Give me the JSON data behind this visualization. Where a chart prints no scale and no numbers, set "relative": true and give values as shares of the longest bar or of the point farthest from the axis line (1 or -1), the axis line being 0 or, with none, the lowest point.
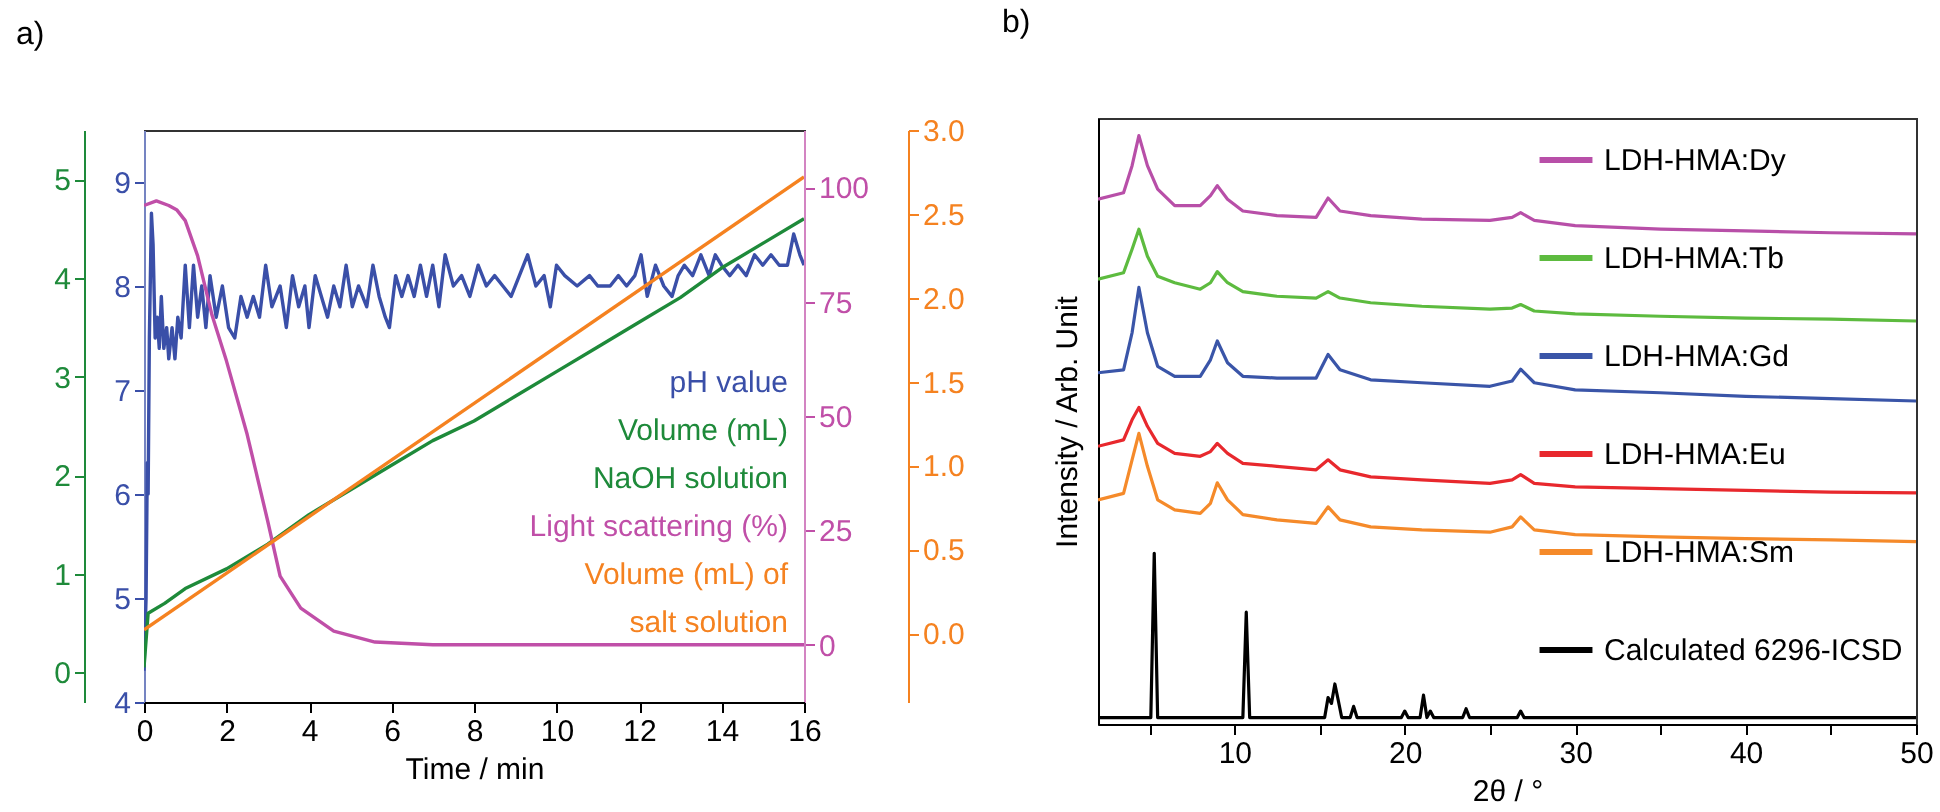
{
  "chart_data": [
    {
      "type": "line",
      "title": "a)",
      "xlabel": "Time / min",
      "xlim": [
        0,
        16
      ],
      "xticks": [
        0,
        2,
        4,
        6,
        8,
        10,
        12,
        14,
        16
      ],
      "ylim": [
        4,
        9.5
      ],
      "yticks": [
        4,
        5,
        6,
        7,
        8,
        9
      ],
      "y2lim": [
        -0.3,
        5.5
      ],
      "y2ticks": [
        0,
        1,
        2,
        3,
        4,
        5
      ],
      "y3lim": [
        -12.5,
        112.5
      ],
      "y3ticks": [
        0,
        25,
        50,
        75,
        100
      ],
      "legend": "bottom right",
      "grid": false,
      "series": [
        {
          "name": "pH value",
          "color": "#3a4fa8",
          "x": [
            0,
            0.05,
            0.08,
            0.1,
            0.13,
            0.18,
            0.22,
            0.27,
            0.32,
            0.37,
            0.42,
            0.48,
            0.55,
            0.6,
            0.68,
            0.75,
            0.82,
            0.9,
            1.0,
            1.1,
            1.2,
            1.3,
            1.4,
            1.5,
            1.6,
            1.75,
            1.9,
            2.05,
            2.2,
            2.35,
            2.5,
            2.65,
            2.8,
            2.95,
            3.1,
            3.3,
            3.45,
            3.6,
            3.75,
            3.9,
            4.0,
            4.15,
            4.3,
            4.45,
            4.6,
            4.75,
            4.9,
            5.05,
            5.2,
            5.4,
            5.55,
            5.7,
            5.85,
            5.95,
            6.1,
            6.25,
            6.4,
            6.55,
            6.7,
            6.85,
            7.0,
            7.15,
            7.3,
            7.5,
            7.7,
            7.9,
            8.1,
            8.3,
            8.5,
            8.7,
            8.9,
            9.1,
            9.3,
            9.5,
            9.7,
            9.85,
            10.0,
            10.2,
            10.5,
            10.8,
            11.0,
            11.3,
            11.5,
            11.7,
            11.9,
            12.05,
            12.2,
            12.4,
            12.6,
            12.8,
            12.95,
            13.1,
            13.3,
            13.5,
            13.7,
            13.85,
            14.0,
            14.2,
            14.4,
            14.6,
            14.8,
            15.0,
            15.2,
            15.4,
            15.6,
            15.75,
            15.9,
            16.0
          ],
          "values": [
            4.3,
            5.0,
            6.3,
            6.0,
            7.5,
            8.7,
            8.4,
            7.5,
            7.7,
            7.4,
            7.9,
            7.4,
            7.6,
            7.3,
            7.6,
            7.3,
            7.7,
            7.5,
            8.2,
            7.6,
            8.2,
            7.7,
            8.0,
            7.6,
            8.1,
            7.7,
            8.0,
            7.6,
            7.5,
            7.9,
            7.7,
            7.9,
            7.7,
            8.2,
            7.8,
            8.0,
            7.6,
            8.1,
            7.8,
            8.0,
            7.6,
            8.1,
            7.9,
            7.7,
            8.0,
            7.8,
            8.2,
            7.8,
            8.0,
            7.8,
            8.2,
            7.9,
            7.7,
            7.6,
            8.1,
            7.9,
            8.1,
            7.9,
            8.2,
            7.9,
            8.2,
            7.8,
            8.3,
            8.0,
            8.1,
            7.9,
            8.2,
            8.0,
            8.1,
            8.0,
            7.9,
            8.1,
            8.3,
            8.0,
            8.1,
            7.8,
            8.2,
            8.1,
            8.0,
            8.1,
            8.0,
            8.0,
            8.1,
            8.0,
            8.1,
            8.3,
            7.9,
            8.2,
            8.0,
            7.9,
            8.1,
            8.2,
            8.1,
            8.3,
            8.1,
            8.3,
            8.2,
            8.1,
            8.2,
            8.1,
            8.3,
            8.2,
            8.3,
            8.2,
            8.2,
            8.5,
            8.3,
            8.2
          ]
        },
        {
          "name": "Volume (mL) NaOH solution",
          "color": "#1e8a3a",
          "axis": "y2",
          "x": [
            0,
            0.1,
            0.5,
            1,
            2,
            3,
            4,
            5,
            6,
            7,
            8,
            9,
            10,
            11,
            12,
            13,
            14,
            15,
            16
          ],
          "values": [
            0.05,
            0.6,
            0.7,
            0.85,
            1.05,
            1.3,
            1.6,
            1.85,
            2.1,
            2.35,
            2.55,
            2.8,
            3.05,
            3.3,
            3.55,
            3.8,
            4.1,
            4.35,
            4.6
          ]
        },
        {
          "name": "Light scattering (%)",
          "color": "#c04fa8",
          "axis": "y3",
          "x": [
            0,
            0.3,
            0.6,
            0.8,
            1.0,
            1.3,
            1.65,
            2.0,
            2.5,
            3.0,
            3.3,
            3.8,
            4.6,
            5.6,
            7,
            16
          ],
          "values": [
            96,
            97,
            96,
            95,
            92.7,
            85,
            72,
            62,
            46,
            27,
            15,
            8,
            3,
            0.6,
            0,
            0
          ]
        }
      ]
    },
    {
      "type": "line",
      "xlim": [
        0,
        16
      ],
      "xticks": [
        0,
        2,
        4,
        6,
        8,
        10,
        12,
        14,
        16
      ],
      "tick_labels": "y",
      "ylim": [
        -0.41,
        3.0
      ],
      "yticks": [
        {
          "value": 0,
          "label": "0.0"
        },
        0.5,
        {
          "value": 1,
          "label": "1.0"
        },
        1.5,
        {
          "value": 2,
          "label": "2.0"
        },
        2.5,
        {
          "value": 3,
          "label": "3.0"
        }
      ],
      "grid": false,
      "series": [
        {
          "name": "Volume (mL) of salt solution",
          "color": "#f58220",
          "x": [
            0,
            16
          ],
          "values": [
            0.02,
            2.72
          ]
        }
      ]
    },
    {
      "type": "line",
      "title": "b)",
      "xlabel": "2θ / °",
      "ylabel": "Intensity / Arb. Unit",
      "relative": true,
      "xlim": [
        2,
        50
      ],
      "xticks": [
        {
          "value": 5,
          "label": null
        },
        10,
        {
          "value": 15,
          "label": null
        },
        20,
        {
          "value": 25,
          "label": null
        },
        30,
        {
          "value": 35,
          "label": null
        },
        40,
        {
          "value": 45,
          "label": null
        },
        50
      ],
      "legend": "top right",
      "grid": false,
      "series": [
        {
          "name": "LDH-HMA:Dy",
          "color": "#b84fa8",
          "x": [
            2,
            3.5,
            4.0,
            4.4,
            4.9,
            5.5,
            6.5,
            8.0,
            8.6,
            9.0,
            9.6,
            10.5,
            12.5,
            14.8,
            15.5,
            16.2,
            18,
            21,
            25,
            26.3,
            26.8,
            27.6,
            30,
            35,
            40,
            45,
            50
          ],
          "values": [
            0.892,
            0.903,
            0.949,
            1.0,
            0.949,
            0.909,
            0.881,
            0.881,
            0.898,
            0.915,
            0.892,
            0.872,
            0.864,
            0.861,
            0.894,
            0.872,
            0.864,
            0.858,
            0.856,
            0.861,
            0.869,
            0.856,
            0.847,
            0.841,
            0.838,
            0.835,
            0.833
          ]
        },
        {
          "name": "LDH-HMA:Tb",
          "color": "#5dbb3f",
          "x": [
            2,
            3.5,
            4.0,
            4.4,
            4.9,
            5.5,
            6.5,
            8.0,
            8.6,
            9.0,
            9.6,
            10.5,
            12.5,
            14.8,
            15.5,
            16.2,
            18,
            21,
            25,
            26.3,
            26.8,
            27.6,
            30,
            35,
            40,
            45,
            50
          ],
          "values": [
            0.756,
            0.767,
            0.807,
            0.841,
            0.795,
            0.761,
            0.75,
            0.739,
            0.75,
            0.769,
            0.75,
            0.735,
            0.727,
            0.724,
            0.735,
            0.724,
            0.716,
            0.71,
            0.705,
            0.707,
            0.713,
            0.702,
            0.697,
            0.693,
            0.69,
            0.688,
            0.685
          ]
        },
        {
          "name": "LDH-HMA:Gd",
          "color": "#3a55a8",
          "x": [
            2,
            3.5,
            4.0,
            4.4,
            4.9,
            5.5,
            6.5,
            8.0,
            8.6,
            9.0,
            9.6,
            10.5,
            12.5,
            14.8,
            15.5,
            16.2,
            18,
            21,
            25,
            26.3,
            26.8,
            27.6,
            30,
            35,
            40,
            45,
            50
          ],
          "values": [
            0.597,
            0.602,
            0.665,
            0.742,
            0.665,
            0.608,
            0.591,
            0.591,
            0.619,
            0.651,
            0.614,
            0.591,
            0.588,
            0.588,
            0.628,
            0.602,
            0.585,
            0.58,
            0.574,
            0.583,
            0.603,
            0.58,
            0.568,
            0.563,
            0.557,
            0.553,
            0.549
          ]
        },
        {
          "name": "LDH-HMA:Eu",
          "color": "#e8282d",
          "x": [
            2,
            3.5,
            4.0,
            4.4,
            4.9,
            5.5,
            6.5,
            8.0,
            8.6,
            9.0,
            9.6,
            10.5,
            12.5,
            14.8,
            15.5,
            16.2,
            18,
            21,
            25,
            26.3,
            26.8,
            27.6,
            30,
            35,
            40,
            45,
            50
          ],
          "values": [
            0.472,
            0.483,
            0.517,
            0.538,
            0.506,
            0.477,
            0.46,
            0.455,
            0.463,
            0.477,
            0.46,
            0.443,
            0.438,
            0.432,
            0.449,
            0.432,
            0.42,
            0.415,
            0.409,
            0.415,
            0.424,
            0.409,
            0.403,
            0.4,
            0.397,
            0.394,
            0.393
          ]
        },
        {
          "name": "LDH-HMA:Sm",
          "color": "#f58a2a",
          "x": [
            2,
            3.5,
            4.0,
            4.4,
            4.9,
            5.5,
            6.5,
            8.0,
            8.6,
            9.0,
            9.6,
            10.5,
            12.5,
            14.8,
            15.5,
            16.2,
            18,
            21,
            25,
            26.3,
            26.8,
            27.6,
            30,
            35,
            40,
            45,
            50
          ],
          "values": [
            0.381,
            0.392,
            0.449,
            0.494,
            0.438,
            0.381,
            0.364,
            0.358,
            0.375,
            0.41,
            0.381,
            0.356,
            0.347,
            0.341,
            0.369,
            0.347,
            0.335,
            0.33,
            0.326,
            0.335,
            0.352,
            0.33,
            0.322,
            0.318,
            0.315,
            0.313,
            0.31
          ]
        },
        {
          "name": "Calculated 6296-ICSD",
          "color": "#000000",
          "x": [
            2,
            5.1,
            5.3,
            5.5,
            10.5,
            10.7,
            10.9,
            15.3,
            15.5,
            15.7,
            15.9,
            16.1,
            16.3,
            16.8,
            17.0,
            17.2,
            19.8,
            20.0,
            20.2,
            20.9,
            21.1,
            21.3,
            21.5,
            21.7,
            23.4,
            23.6,
            23.8,
            26.6,
            26.8,
            27.0,
            50
          ],
          "values": [
            0.011,
            0.011,
            0.29,
            0.011,
            0.011,
            0.19,
            0.011,
            0.011,
            0.045,
            0.035,
            0.068,
            0.04,
            0.011,
            0.011,
            0.03,
            0.011,
            0.011,
            0.022,
            0.011,
            0.011,
            0.049,
            0.011,
            0.022,
            0.011,
            0.011,
            0.026,
            0.011,
            0.011,
            0.022,
            0.011,
            0.011
          ]
        }
      ]
    }
  ]
}
